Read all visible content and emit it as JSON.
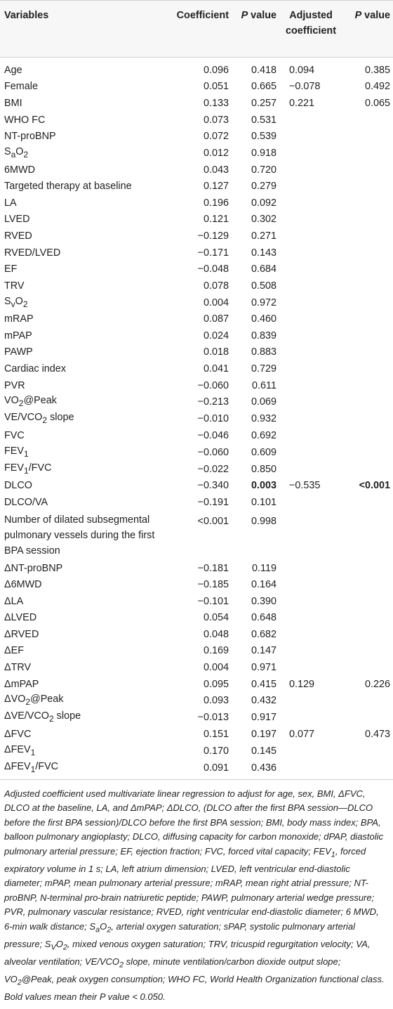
{
  "table": {
    "headers": {
      "variables": "Variables",
      "coefficient": "Coefficient",
      "p_value_italic": "P",
      "p_value_text": " value",
      "adjusted_line1": "Adjusted",
      "adjusted_line2": "coefficient",
      "p_value2_italic": "P",
      "p_value2_text": " value"
    },
    "rows": [
      {
        "var_html": "Age",
        "coef": "0.096",
        "p": "0.418",
        "adj": "0.094",
        "p2": "0.385"
      },
      {
        "var_html": "Female",
        "coef": "0.051",
        "p": "0.665",
        "adj": "−0.078",
        "p2": "0.492"
      },
      {
        "var_html": "BMI",
        "coef": "0.133",
        "p": "0.257",
        "adj": "0.221",
        "p2": "0.065"
      },
      {
        "var_html": "WHO FC",
        "coef": "0.073",
        "p": "0.531",
        "adj": "",
        "p2": ""
      },
      {
        "var_html": "NT-proBNP",
        "coef": "0.072",
        "p": "0.539",
        "adj": "",
        "p2": ""
      },
      {
        "var_html": "S<sub>a</sub>O<sub>2</sub>",
        "coef": "0.012",
        "p": "0.918",
        "adj": "",
        "p2": ""
      },
      {
        "var_html": "6MWD",
        "coef": "0.043",
        "p": "0.720",
        "adj": "",
        "p2": ""
      },
      {
        "var_html": "Targeted therapy at baseline",
        "coef": "0.127",
        "p": "0.279",
        "adj": "",
        "p2": ""
      },
      {
        "var_html": "LA",
        "coef": "0.196",
        "p": "0.092",
        "adj": "",
        "p2": ""
      },
      {
        "var_html": "LVED",
        "coef": "0.121",
        "p": "0.302",
        "adj": "",
        "p2": ""
      },
      {
        "var_html": "RVED",
        "coef": "−0.129",
        "p": "0.271",
        "adj": "",
        "p2": ""
      },
      {
        "var_html": "RVED/LVED",
        "coef": "−0.171",
        "p": "0.143",
        "adj": "",
        "p2": ""
      },
      {
        "var_html": "EF",
        "coef": "−0.048",
        "p": "0.684",
        "adj": "",
        "p2": ""
      },
      {
        "var_html": "TRV",
        "coef": "0.078",
        "p": "0.508",
        "adj": "",
        "p2": ""
      },
      {
        "var_html": "S<sub>v</sub>O<sub>2</sub>",
        "coef": "0.004",
        "p": "0.972",
        "adj": "",
        "p2": ""
      },
      {
        "var_html": "mRAP",
        "coef": "0.087",
        "p": "0.460",
        "adj": "",
        "p2": ""
      },
      {
        "var_html": "mPAP",
        "coef": "0.024",
        "p": "0.839",
        "adj": "",
        "p2": ""
      },
      {
        "var_html": "PAWP",
        "coef": "0.018",
        "p": "0.883",
        "adj": "",
        "p2": ""
      },
      {
        "var_html": "Cardiac index",
        "coef": "0.041",
        "p": "0.729",
        "adj": "",
        "p2": ""
      },
      {
        "var_html": "PVR",
        "coef": "−0.060",
        "p": "0.611",
        "adj": "",
        "p2": ""
      },
      {
        "var_html": "VO<sub>2</sub>@Peak",
        "coef": "−0.213",
        "p": "0.069",
        "adj": "",
        "p2": ""
      },
      {
        "var_html": "VE/VCO<sub>2</sub> slope",
        "coef": "−0.010",
        "p": "0.932",
        "adj": "",
        "p2": ""
      },
      {
        "var_html": "FVC",
        "coef": "−0.046",
        "p": "0.692",
        "adj": "",
        "p2": ""
      },
      {
        "var_html": "FEV<sub>1</sub>",
        "coef": "−0.060",
        "p": "0.609",
        "adj": "",
        "p2": ""
      },
      {
        "var_html": "FEV<sub>1</sub>/FVC",
        "coef": "−0.022",
        "p": "0.850",
        "adj": "",
        "p2": ""
      },
      {
        "var_html": "DLCO",
        "coef": "−0.340",
        "p": "0.003",
        "adj": "−0.535",
        "p2": "<0.001",
        "bold_p": true,
        "bold_p2": true
      },
      {
        "var_html": "DLCO/VA",
        "coef": "−0.191",
        "p": "0.101",
        "adj": "",
        "p2": ""
      },
      {
        "var_html": "Number of dilated subsegmental pulmonary vessels during the first BPA session",
        "coef": "<0.001",
        "p": "0.998",
        "adj": "",
        "p2": "",
        "tall": true
      },
      {
        "var_html": "ΔNT-proBNP",
        "coef": "−0.181",
        "p": "0.119",
        "adj": "",
        "p2": ""
      },
      {
        "var_html": "Δ6MWD",
        "coef": "−0.185",
        "p": "0.164",
        "adj": "",
        "p2": ""
      },
      {
        "var_html": "ΔLA",
        "coef": "−0.101",
        "p": "0.390",
        "adj": "",
        "p2": ""
      },
      {
        "var_html": "ΔLVED",
        "coef": "0.054",
        "p": "0.648",
        "adj": "",
        "p2": ""
      },
      {
        "var_html": "ΔRVED",
        "coef": "0.048",
        "p": "0.682",
        "adj": "",
        "p2": ""
      },
      {
        "var_html": "ΔEF",
        "coef": "0.169",
        "p": "0.147",
        "adj": "",
        "p2": ""
      },
      {
        "var_html": "ΔTRV",
        "coef": "0.004",
        "p": "0.971",
        "adj": "",
        "p2": ""
      },
      {
        "var_html": "ΔmPAP",
        "coef": "0.095",
        "p": "0.415",
        "adj": "0.129",
        "p2": "0.226"
      },
      {
        "var_html": "ΔVO<sub>2</sub>@Peak",
        "coef": "0.093",
        "p": "0.432",
        "adj": "",
        "p2": ""
      },
      {
        "var_html": "ΔVE/VCO<sub>2</sub> slope",
        "coef": "−0.013",
        "p": "0.917",
        "adj": "",
        "p2": ""
      },
      {
        "var_html": "ΔFVC",
        "coef": "0.151",
        "p": "0.197",
        "adj": "0.077",
        "p2": "0.473"
      },
      {
        "var_html": "ΔFEV<sub>1</sub>",
        "coef": "0.170",
        "p": "0.145",
        "adj": "",
        "p2": ""
      },
      {
        "var_html": "ΔFEV<sub>1</sub>/FVC",
        "coef": "0.091",
        "p": "0.436",
        "adj": "",
        "p2": ""
      }
    ]
  },
  "footnote_html": "Adjusted coefficient used multivariate linear regression to adjust for age, sex, BMI, ΔFVC, DLCO at the baseline, LA, and ΔmPAP; ΔDLCO, (DLCO after the first BPA session—DLCO before the first BPA session)/DLCO before the first BPA session; BMI, body mass index; BPA, balloon pulmonary angioplasty; DLCO, diffusing capacity for carbon monoxide; dPAP, diastolic pulmonary arterial pressure; EF, ejection fraction; FVC, forced vital capacity; FEV<sub>1</sub>, forced expiratory volume in 1 s; LA, left atrium dimension; LVED, left ventricular end-diastolic diameter; mPAP, mean pulmonary arterial pressure; mRAP, mean right atrial pressure; NT-proBNP, N-terminal pro-brain natriuretic peptide; PAWP, pulmonary arterial wedge pressure; PVR, pulmonary vascular resistance; RVED, right ventricular end-diastolic diameter; 6 MWD, 6-min walk distance; S<sub>a</sub>O<sub>2</sub>, arterial oxygen saturation; sPAP, systolic pulmonary arterial pressure; S<sub>V</sub>O<sub>2</sub>, mixed venous oxygen saturation; TRV, tricuspid regurgitation velocity; VA, alveolar ventilation; VE/VCO<sub>2</sub> slope, minute ventilation/carbon dioxide output slope; VO<sub>2</sub>@Peak, peak oxygen consumption; WHO FC, World Health Organization functional class. Bold values mean their P value &lt; 0.050."
}
